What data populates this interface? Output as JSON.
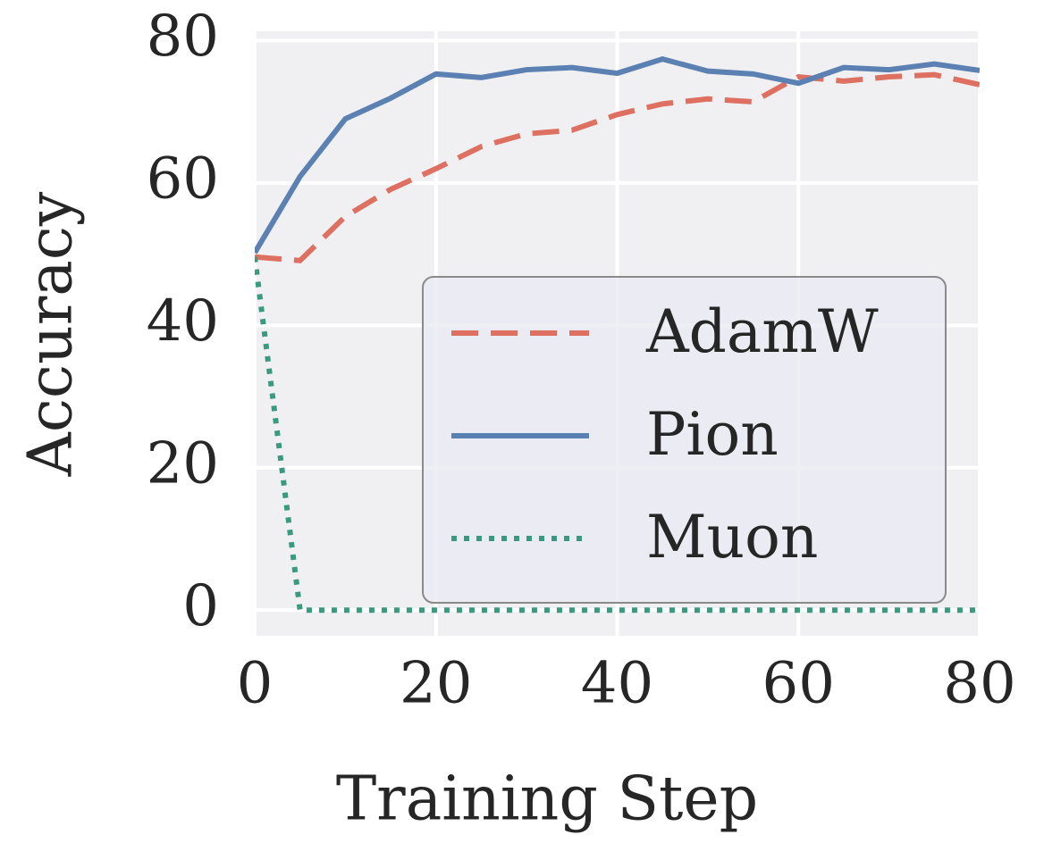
{
  "chart_data": {
    "type": "line",
    "x_label": "Training Step",
    "y_label": "Accuracy",
    "x": [
      0,
      5,
      10,
      15,
      20,
      25,
      30,
      35,
      40,
      45,
      50,
      55,
      60,
      65,
      70,
      75,
      80
    ],
    "series": [
      {
        "name": "AdamW",
        "color": "#dd7060",
        "dash": "dashed",
        "values": [
          49.6,
          49.1,
          55.3,
          59.1,
          62,
          65.1,
          66.9,
          67.4,
          69.6,
          71.1,
          71.8,
          71.4,
          74.9,
          74.3,
          74.9,
          75.2,
          73.8
        ]
      },
      {
        "name": "Pion",
        "color": "#5b80b2",
        "dash": "solid",
        "values": [
          50.2,
          60.9,
          69,
          71.9,
          75.3,
          74.8,
          75.9,
          76.2,
          75.4,
          77.4,
          75.7,
          75.3,
          74,
          76.2,
          75.9,
          76.7,
          75.8
        ]
      },
      {
        "name": "Muon",
        "color": "#3a9a80",
        "dash": "dotted",
        "values": [
          49.6,
          0,
          0,
          0,
          0,
          0,
          0,
          0,
          0,
          0,
          0,
          0,
          0,
          0,
          0,
          0,
          0
        ]
      }
    ],
    "xlim": [
      0,
      80
    ],
    "xticks": [
      0,
      20,
      40,
      60,
      80
    ],
    "ylim": [
      -3.6,
      81.3
    ],
    "yticks": [
      0,
      20,
      40,
      60,
      80
    ],
    "grid": true,
    "legend": "center right"
  }
}
